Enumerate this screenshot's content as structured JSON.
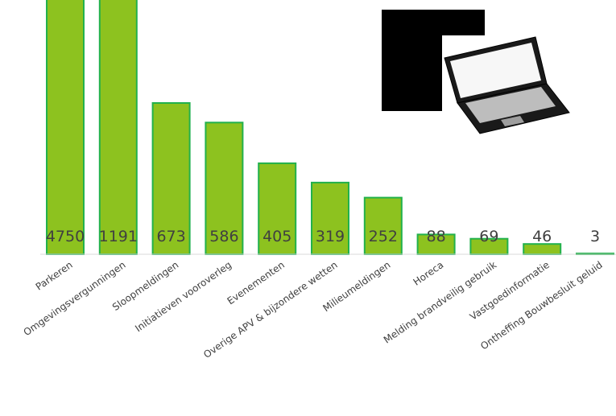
{
  "chart_data": {
    "type": "bar",
    "categories": [
      "Parkeren",
      "Omgevingsvergunningen",
      "Sloopmeldingen",
      "Initiatieven vooroverleg",
      "Evenementen",
      "Overige APV & bijzondere wetten",
      "Milieumeldingen",
      "Horeca",
      "Melding brandveilig gebruik",
      "Vastgoedinformatie",
      "Ontheffing Bouwbesluit geluid"
    ],
    "values": [
      4750,
      1191,
      673,
      586,
      405,
      319,
      252,
      88,
      69,
      46,
      3
    ],
    "title": "",
    "xlabel": "",
    "ylabel": "",
    "grid": false,
    "legend": "none",
    "data_labels": true,
    "colors": {
      "bar_fill": "#8dc21f",
      "bar_edge": "#22b14c",
      "label_text": "#404040",
      "axis": "#d9d9d9"
    }
  },
  "illustration": {
    "icon": "laptop-with-charts-icon"
  }
}
